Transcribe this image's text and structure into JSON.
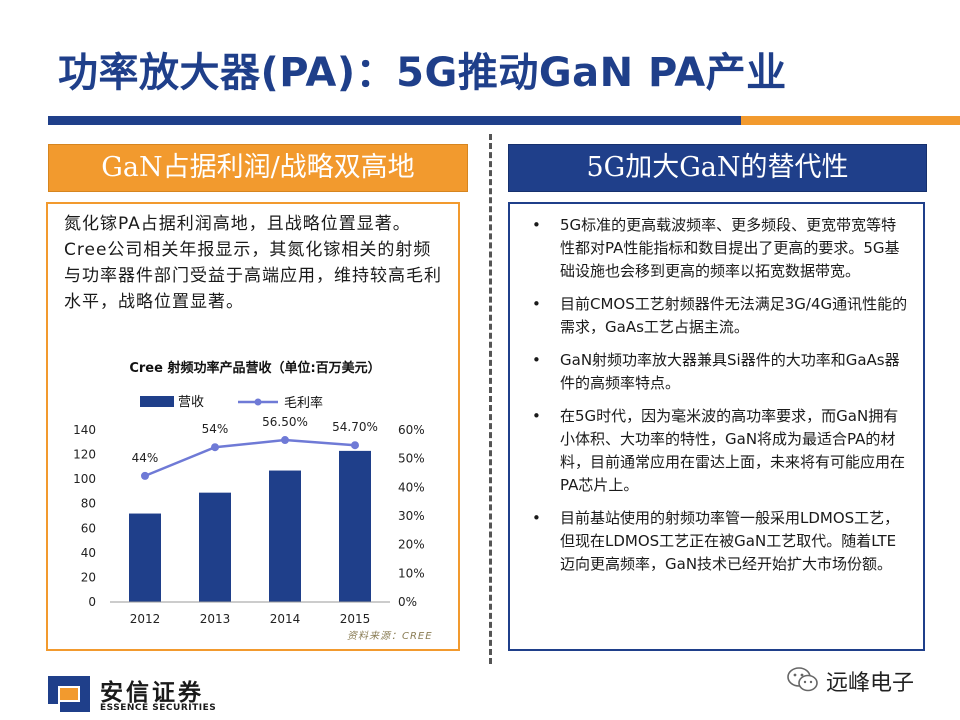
{
  "slide": {
    "title": "功率放大器(PA)：5G推动GaN PA产业",
    "left_header": "GaN占据利润/战略双高地",
    "right_header": "5G加大GaN的替代性",
    "intro_text": "氮化镓PA占据利润高地，且战略位置显著。Cree公司相关年报显示，其氮化镓相关的射频与功率器件部门受益于高端应用，维持较高毛利水平，战略位置显著。",
    "bullet_symbol": "•",
    "bullets": [
      "5G标准的更高载波频率、更多频段、更宽带宽等特性都对PA性能指标和数目提出了更高的要求。5G基础设施也会移到更高的频率以拓宽数据带宽。",
      "目前CMOS工艺射频器件无法满足3G/4G通讯性能的需求，GaAs工艺占据主流。",
      "GaN射频功率放大器兼具Si器件的大功率和GaAs器件的高频率特点。",
      "在5G时代，因为毫米波的高功率要求，而GaN拥有小体积、大功率的特性，GaN将成为最适合PA的材料，目前通常应用在雷达上面，未来将有可能应用在PA芯片上。",
      "目前基站使用的射频功率管一般采用LDMOS工艺，但现在LDMOS工艺正在被GaN工艺取代。随着LTE迈向更高频率，GaN技术已经开始扩大市场份额。"
    ],
    "source_note": "资料来源：CREE",
    "logo_cn": "安信证券",
    "logo_en": "ESSENCE SECURITIES",
    "watermark": "远峰电子"
  },
  "chart_data": {
    "type": "bar",
    "title": "Cree 射频功率产品营收（单位:百万美元）",
    "categories": [
      "2012",
      "2013",
      "2014",
      "2015"
    ],
    "series": [
      {
        "name": "营收",
        "type": "bar",
        "axis": "left",
        "values": [
          72,
          89,
          107,
          123
        ]
      },
      {
        "name": "毛利率",
        "type": "line",
        "axis": "right",
        "values": [
          44,
          54,
          56.5,
          54.7
        ],
        "labels": [
          "44%",
          "54%",
          "56.50%",
          "54.70%"
        ]
      }
    ],
    "y_left": {
      "min": 0,
      "max": 140,
      "ticks": [
        "0",
        "20",
        "40",
        "60",
        "80",
        "100",
        "120",
        "140"
      ]
    },
    "y_right": {
      "min": 0,
      "max": 60,
      "ticks": [
        "0%",
        "10%",
        "20%",
        "30%",
        "40%",
        "50%",
        "60%"
      ]
    },
    "legend_position": "top",
    "grid": false,
    "colors": {
      "bar": "#1f3f8a",
      "line": "#6f7ad6"
    }
  },
  "colors": {
    "navy": "#1f3f8a",
    "orange": "#f29a2e"
  }
}
